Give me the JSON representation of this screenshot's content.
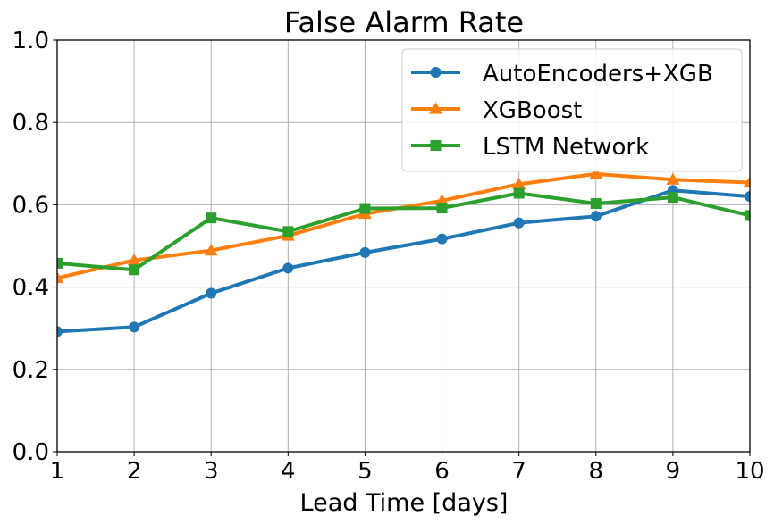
{
  "chart_data": {
    "type": "line",
    "title": "False Alarm Rate",
    "xlabel": "Lead Time [days]",
    "ylabel": "",
    "x": [
      1,
      2,
      3,
      4,
      5,
      6,
      7,
      8,
      9,
      10
    ],
    "xlim": [
      1,
      10
    ],
    "ylim": [
      0,
      1
    ],
    "x_ticks": [
      "1",
      "2",
      "3",
      "4",
      "5",
      "6",
      "7",
      "8",
      "9",
      "10"
    ],
    "y_ticks": [
      "0.0",
      "0.2",
      "0.4",
      "0.6",
      "0.8",
      "1.0"
    ],
    "grid": true,
    "legend_position": "top-right",
    "series": [
      {
        "name": "AutoEncoders+XGB",
        "color": "#1f77b4",
        "marker": "circle",
        "values": [
          0.292,
          0.303,
          0.385,
          0.446,
          0.484,
          0.517,
          0.556,
          0.572,
          0.635,
          0.62
        ]
      },
      {
        "name": "XGBoost",
        "color": "#ff7f0e",
        "marker": "triangle",
        "values": [
          0.422,
          0.465,
          0.489,
          0.525,
          0.578,
          0.61,
          0.65,
          0.675,
          0.661,
          0.654
        ]
      },
      {
        "name": "LSTM Network",
        "color": "#2ca02c",
        "marker": "square",
        "values": [
          0.458,
          0.442,
          0.568,
          0.535,
          0.591,
          0.592,
          0.628,
          0.603,
          0.618,
          0.574
        ]
      }
    ]
  }
}
